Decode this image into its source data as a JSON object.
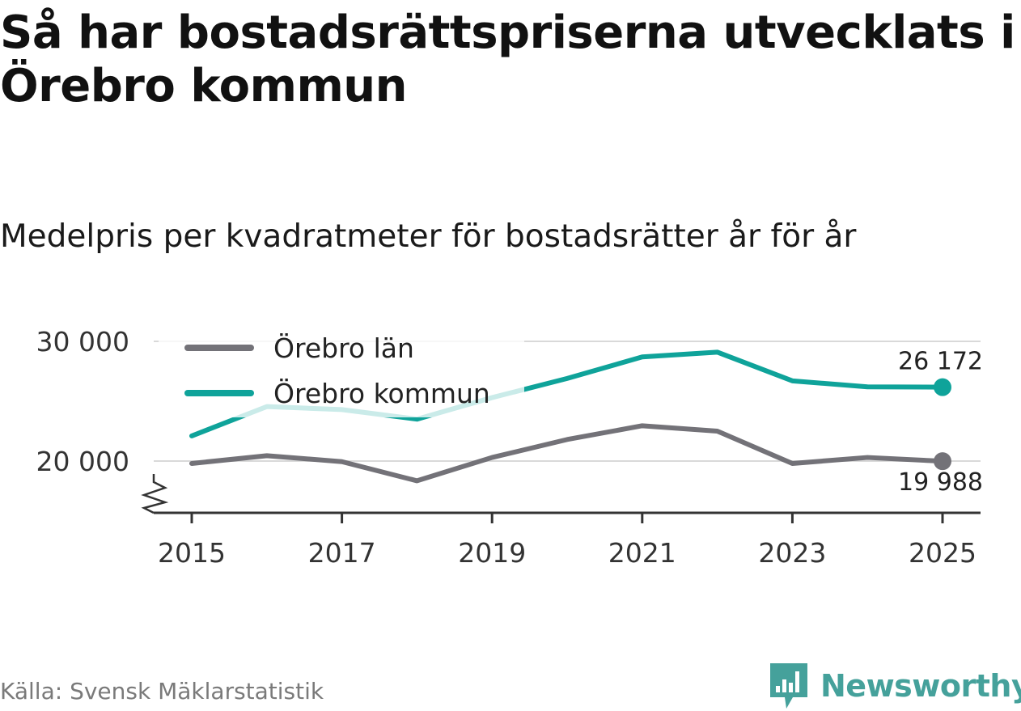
{
  "title": "Så har bostadsrättspriserna utvecklats i Örebro kommun",
  "subtitle": "Medelpris per kvadratmeter för bostadsrätter år för år",
  "source": "Källa: Svensk Mäklarstatistik",
  "brand": "Newsworthy",
  "colors": {
    "lan": "#737278",
    "kommun": "#0fa39a",
    "kommun_faded": "#c9ecea",
    "grid": "#d9d9d9",
    "axis": "#333333",
    "brand": "#45a19b"
  },
  "chart_data": {
    "type": "line",
    "title": "Medelpris per kvadratmeter för bostadsrätter år för år",
    "xlabel": "",
    "ylabel": "",
    "x": [
      2015,
      2016,
      2017,
      2018,
      2019,
      2020,
      2021,
      2022,
      2023,
      2024,
      2025
    ],
    "xticks": [
      "2015",
      "2017",
      "2019",
      "2021",
      "2023",
      "2025"
    ],
    "yticks": [
      20000,
      30000
    ],
    "ytick_labels": [
      "20 000",
      "30 000"
    ],
    "ylim": [
      15500,
      30000
    ],
    "grid": true,
    "legend_position": "top-left",
    "series": [
      {
        "name": "Örebro län",
        "key": "lan",
        "values": [
          19800,
          20450,
          19950,
          18350,
          20300,
          21800,
          22950,
          22500,
          19800,
          20300,
          19988
        ],
        "end_label": "19 988"
      },
      {
        "name": "Örebro kommun",
        "key": "kommun",
        "values": [
          22100,
          24550,
          24300,
          23500,
          25300,
          26900,
          28700,
          29100,
          26700,
          26200,
          26172
        ],
        "end_label": "26 172"
      }
    ]
  }
}
